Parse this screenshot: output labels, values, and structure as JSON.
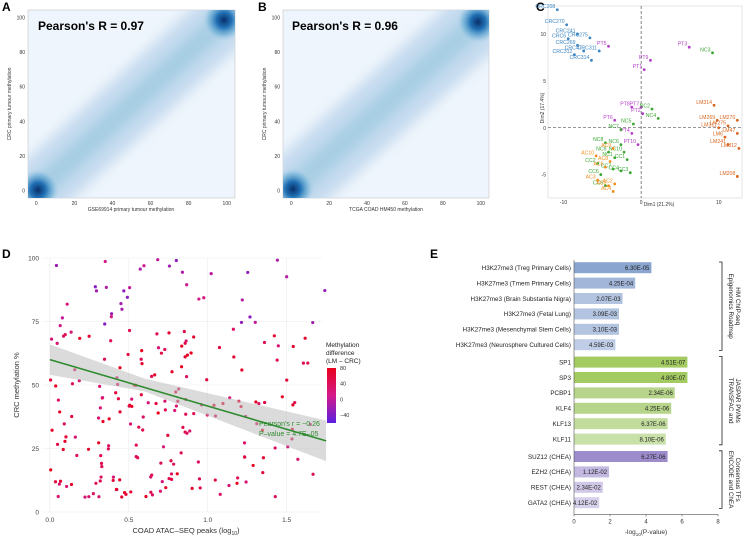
{
  "panels": {
    "A": {
      "label": "A",
      "annotation": "Pearson's R = 0.97",
      "xlabel": "GSE69914 primary tumour methylation",
      "ylabel": "CRC primary tumour methylation",
      "xticks": [
        "0",
        "20",
        "40",
        "60",
        "80",
        "100"
      ],
      "yticks": [
        "0",
        "20",
        "40",
        "60",
        "80",
        "100"
      ]
    },
    "B": {
      "label": "B",
      "annotation": "Pearson's R = 0.96",
      "xlabel": "TCGA COAD HM450 methylation",
      "ylabel": "CRC primary tumour methylation",
      "xticks": [
        "0",
        "20",
        "40",
        "60",
        "80",
        "100"
      ],
      "yticks": [
        "0",
        "20",
        "40",
        "60",
        "80",
        "100"
      ]
    },
    "C": {
      "label": "C",
      "xlabel": "Dim1 (21.2%)",
      "ylabel": "Dim2 (17.4%)",
      "xticks": [
        "-10",
        "0",
        "10"
      ],
      "yticks": [
        "10",
        "5",
        "0",
        "-5"
      ]
    },
    "D": {
      "label": "D",
      "xlabel": "COAD ATAC–SEQ peaks (log",
      "xlabel_sub": "10",
      "xlabel_end": ")",
      "ylabel": "CRC methylation %",
      "xticks": [
        "0.0",
        "0.5",
        "1.0",
        "1.5"
      ],
      "yticks": [
        "0",
        "25",
        "50",
        "75",
        "100"
      ],
      "stat_r": "Pearson's r = −0.26",
      "stat_p": "P–value = 4.7E–05",
      "legend_title_1": "Methylation",
      "legend_title_2": "difference",
      "legend_title_3": "(LM – CRC)",
      "legend_ticks": [
        "80",
        "40",
        "0",
        "−40"
      ]
    },
    "E": {
      "label": "E",
      "xlabel": "-log",
      "xlabel_sub": "10",
      "xlabel_end": "(P-value)",
      "xticks": [
        "0",
        "2",
        "4",
        "6",
        "8"
      ],
      "groups": [
        "Epigenomics Roadmap HM ChIP-seq",
        "TRANSFAC and JASPAR PWMs",
        "ENCODE and ChEA Consensus TFs"
      ]
    }
  },
  "chart_data": [
    {
      "id": "A",
      "type": "heatmap",
      "title": "Pearson's R = 0.97",
      "xlabel": "GSE69914 primary tumour methylation",
      "ylabel": "CRC primary tumour methylation",
      "xlim": [
        0,
        100
      ],
      "ylim": [
        0,
        100
      ],
      "pearson_r": 0.97
    },
    {
      "id": "B",
      "type": "heatmap",
      "title": "Pearson's R = 0.96",
      "xlabel": "TCGA COAD HM450 methylation",
      "ylabel": "CRC primary tumour methylation",
      "xlim": [
        0,
        100
      ],
      "ylim": [
        0,
        100
      ],
      "pearson_r": 0.96
    },
    {
      "id": "C",
      "type": "scatter",
      "xlabel": "Dim1 (21.2%)",
      "ylabel": "Dim2 (17.4%)",
      "xlim": [
        -12,
        13
      ],
      "ylim": [
        -7.5,
        13
      ],
      "series": [
        {
          "name": "CRC",
          "color": "#3b86c4",
          "points": [
            {
              "label": "CRC208",
              "x": -10.8,
              "y": 12.6
            },
            {
              "label": "CRC270",
              "x": -9.6,
              "y": 11.0
            },
            {
              "label": "CRC241",
              "x": -8.2,
              "y": 10.0
            },
            {
              "label": "CRC6",
              "x": -9.4,
              "y": 9.5
            },
            {
              "label": "CRC275",
              "x": -6.6,
              "y": 9.6
            },
            {
              "label": "CRC269",
              "x": -8.2,
              "y": 8.8
            },
            {
              "label": "CRC47",
              "x": -7.4,
              "y": 8.2
            },
            {
              "label": "CRC311",
              "x": -5.4,
              "y": 8.2
            },
            {
              "label": "CRC312",
              "x": -8.6,
              "y": 7.8
            },
            {
              "label": "CRC314",
              "x": -6.4,
              "y": 7.2
            }
          ]
        },
        {
          "name": "PT",
          "color": "#b53ec8",
          "points": [
            {
              "label": "PT3",
              "x": 6.2,
              "y": 8.6
            },
            {
              "label": "PT5",
              "x": -4.2,
              "y": 8.7
            },
            {
              "label": "PT9",
              "x": 1.2,
              "y": 7.2
            },
            {
              "label": "PT1",
              "x": 0.4,
              "y": 6.2
            },
            {
              "label": "PT8",
              "x": -1.2,
              "y": 2.2
            },
            {
              "label": "PT7",
              "x": 0.0,
              "y": 2.2
            },
            {
              "label": "PT2",
              "x": 0.2,
              "y": 1.5
            },
            {
              "label": "PT6",
              "x": -3.4,
              "y": 0.8
            },
            {
              "label": "PT4",
              "x": -1.2,
              "y": -0.6
            },
            {
              "label": "PT10",
              "x": -0.4,
              "y": -1.8
            }
          ]
        },
        {
          "name": "NC",
          "color": "#3aa832",
          "points": [
            {
              "label": "NC3",
              "x": 9.2,
              "y": 8.0
            },
            {
              "label": "NC2",
              "x": 1.4,
              "y": 2.0
            },
            {
              "label": "NC4",
              "x": 2.2,
              "y": 1.0
            },
            {
              "label": "NC5",
              "x": -1.0,
              "y": 0.4
            },
            {
              "label": "NC7",
              "x": -2.6,
              "y": -0.2
            },
            {
              "label": "NC8",
              "x": -4.6,
              "y": -1.6
            },
            {
              "label": "NC6",
              "x": -2.6,
              "y": -1.8
            },
            {
              "label": "NC9",
              "x": -4.2,
              "y": -2.6
            },
            {
              "label": "NC1",
              "x": -3.4,
              "y": -3.2
            },
            {
              "label": "NC10",
              "x": -2.2,
              "y": -2.6
            }
          ]
        },
        {
          "name": "CC",
          "color": "#3aa832",
          "points": [
            {
              "label": "CC2",
              "x": -5.6,
              "y": -3.8
            },
            {
              "label": "CC1",
              "x": -1.8,
              "y": -3.4
            },
            {
              "label": "CC7",
              "x": -3.6,
              "y": -4.4
            },
            {
              "label": "CC4",
              "x": -2.6,
              "y": -4.6
            },
            {
              "label": "CC3",
              "x": -1.4,
              "y": -4.8
            },
            {
              "label": "CC6",
              "x": -5.2,
              "y": -5.0
            },
            {
              "label": "CC5",
              "x": -4.6,
              "y": -6.2
            }
          ]
        },
        {
          "name": "AC",
          "color": "#f08e1e",
          "points": [
            {
              "label": "AC10",
              "x": -5.8,
              "y": -3.0
            },
            {
              "label": "AC9",
              "x": -3.6,
              "y": -2.2
            },
            {
              "label": "AC8",
              "x": -4.0,
              "y": -3.6
            },
            {
              "label": "AC6",
              "x": -4.6,
              "y": -4.2
            },
            {
              "label": "AC3",
              "x": -5.6,
              "y": -5.6
            },
            {
              "label": "AC2",
              "x": -3.4,
              "y": -6.0
            },
            {
              "label": "AC5",
              "x": -4.2,
              "y": -6.2
            },
            {
              "label": "AC4",
              "x": -3.6,
              "y": -6.8
            }
          ]
        },
        {
          "name": "LM",
          "color": "#d9641c",
          "points": [
            {
              "label": "LM314",
              "x": 9.4,
              "y": 2.4
            },
            {
              "label": "LM269",
              "x": 9.8,
              "y": 0.8
            },
            {
              "label": "LM270",
              "x": 12.4,
              "y": 0.8
            },
            {
              "label": "LM311",
              "x": 10.0,
              "y": 0.0
            },
            {
              "label": "LM275",
              "x": 11.2,
              "y": 0.2
            },
            {
              "label": "LM47",
              "x": 12.4,
              "y": -0.6
            },
            {
              "label": "LM6",
              "x": 10.8,
              "y": -1.0
            },
            {
              "label": "LM241",
              "x": 11.2,
              "y": -1.8
            },
            {
              "label": "LM312",
              "x": 12.6,
              "y": -2.2
            },
            {
              "label": "LM208",
              "x": 12.4,
              "y": -5.2
            }
          ]
        }
      ]
    },
    {
      "id": "D",
      "type": "scatter",
      "xlabel": "COAD ATAC–SEQ peaks (log10)",
      "ylabel": "CRC methylation %",
      "xlim": [
        -0.05,
        1.8
      ],
      "ylim": [
        0,
        100
      ],
      "regression": {
        "x": [
          0.0,
          1.75
        ],
        "y": [
          60,
          28
        ]
      },
      "pearson_r": -0.26,
      "p_value": "4.7E–05",
      "color_scale": {
        "title": "Methylation difference (LM – CRC)",
        "min": -60,
        "max": 80
      }
    },
    {
      "id": "E",
      "type": "bar",
      "xlabel": "-log10(P-value)",
      "xlim": [
        0,
        8
      ],
      "groups": [
        {
          "name": "Epigenomics Roadmap HM ChIP-seq",
          "bars": [
            {
              "label": "H3K27me3 (Treg Primary Cells)",
              "value": 4.3,
              "pvalue": "6.30E-05",
              "color": "#8aa5cf"
            },
            {
              "label": "H3K27me3 (Tmem Primary Cells)",
              "value": 3.4,
              "pvalue": "4.25E-04",
              "color": "#a1b6d9"
            },
            {
              "label": "H3K27me3 (Brain Substantia Nigra)",
              "value": 2.7,
              "pvalue": "2.07E-03",
              "color": "#b3c4e0"
            },
            {
              "label": "H3K27me3 (Fetal Lung)",
              "value": 2.5,
              "pvalue": "3.09E-03",
              "color": "#b3c4e0"
            },
            {
              "label": "H3K27me3 (Mesenchymal Stem Cells)",
              "value": 2.5,
              "pvalue": "3.10E-03",
              "color": "#b3c4e0"
            },
            {
              "label": "H3K27me3 (Neurosphere Cultured Cells)",
              "value": 2.3,
              "pvalue": "4.59E-03",
              "color": "#bfcde6"
            }
          ]
        },
        {
          "name": "TRANSFAC and JASPAR PWMs",
          "bars": [
            {
              "label": "SP1",
              "value": 6.3,
              "pvalue": "4.51E-07",
              "color": "#a4cb62"
            },
            {
              "label": "SP3",
              "value": 6.3,
              "pvalue": "4.80E-07",
              "color": "#a4cb62"
            },
            {
              "label": "PCBP1",
              "value": 5.6,
              "pvalue": "2.34E-06",
              "color": "#b7d58a"
            },
            {
              "label": "KLF4",
              "value": 5.4,
              "pvalue": "4.25E-06",
              "color": "#b7d58a"
            },
            {
              "label": "KLF13",
              "value": 5.2,
              "pvalue": "6.37E-06",
              "color": "#c2dc9d"
            },
            {
              "label": "KLF11",
              "value": 5.1,
              "pvalue": "8.10E-06",
              "color": "#c9e0a9"
            }
          ]
        },
        {
          "name": "ENCODE and ChEA Consensus TFs",
          "bars": [
            {
              "label": "SUZ12 (CHEA)",
              "value": 5.2,
              "pvalue": "6.27E-06",
              "color": "#9c8ccc"
            },
            {
              "label": "EZH2 (CHEA)",
              "value": 1.95,
              "pvalue": "1.12E-02",
              "color": "#c3b8e0"
            },
            {
              "label": "REST (CHEA)",
              "value": 1.6,
              "pvalue": "2.34E-02",
              "color": "#d0c8e6"
            },
            {
              "label": "GATA2 (CHEA)",
              "value": 1.4,
              "pvalue": "4.12E-02",
              "color": "#d7d0ea"
            }
          ]
        }
      ]
    }
  ]
}
